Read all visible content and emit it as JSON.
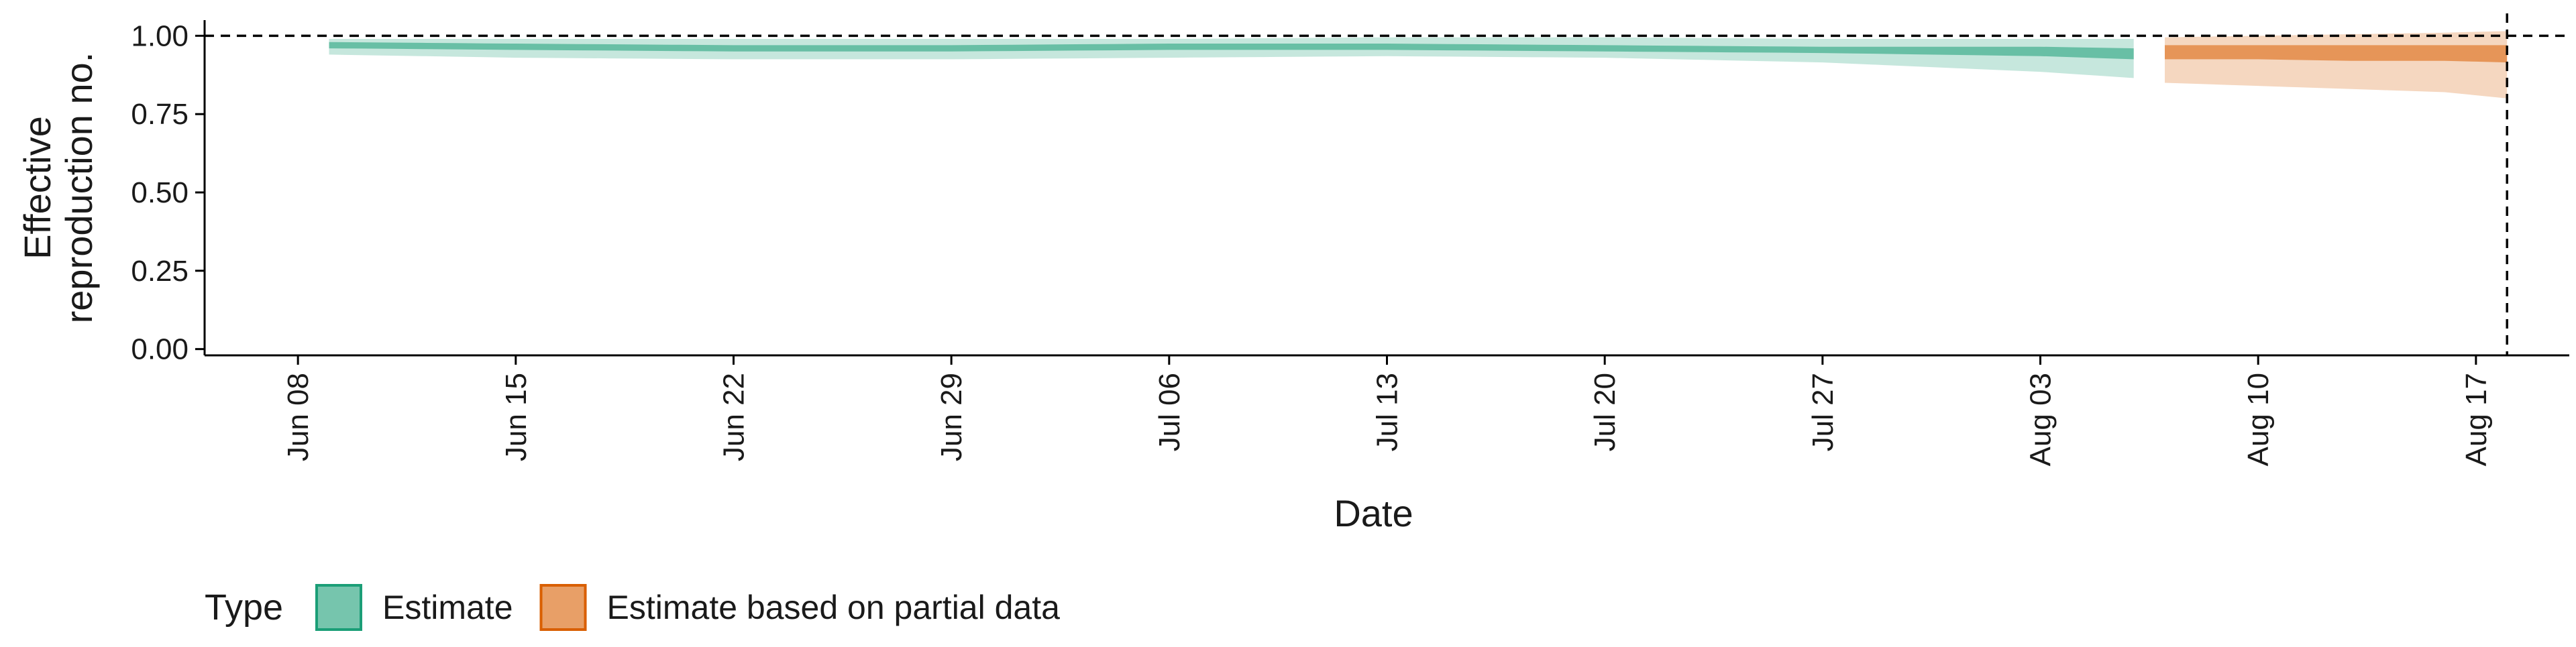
{
  "chart_data": {
    "type": "area",
    "title": "",
    "xlabel": "Date",
    "ylabel_lines": [
      "Effective",
      "reproduction no."
    ],
    "x_type": "date",
    "xlim": [
      "2020-06-05",
      "2020-08-20"
    ],
    "ylim": [
      -0.02,
      1.05
    ],
    "x_ticks": [
      {
        "date": "2020-06-08",
        "label": "Jun 08"
      },
      {
        "date": "2020-06-15",
        "label": "Jun 15"
      },
      {
        "date": "2020-06-22",
        "label": "Jun 22"
      },
      {
        "date": "2020-06-29",
        "label": "Jun 29"
      },
      {
        "date": "2020-07-06",
        "label": "Jul 06"
      },
      {
        "date": "2020-07-13",
        "label": "Jul 13"
      },
      {
        "date": "2020-07-20",
        "label": "Jul 20"
      },
      {
        "date": "2020-07-27",
        "label": "Jul 27"
      },
      {
        "date": "2020-08-03",
        "label": "Aug 03"
      },
      {
        "date": "2020-08-10",
        "label": "Aug 10"
      },
      {
        "date": "2020-08-17",
        "label": "Aug 17"
      }
    ],
    "y_ticks": [
      {
        "value": 0.0,
        "label": "0.00"
      },
      {
        "value": 0.25,
        "label": "0.25"
      },
      {
        "value": 0.5,
        "label": "0.50"
      },
      {
        "value": 0.75,
        "label": "0.75"
      },
      {
        "value": 1.0,
        "label": "1.00"
      }
    ],
    "reference_lines": {
      "y": 1.0,
      "x": "2020-08-18"
    },
    "grid": false,
    "legend": {
      "title": "Type",
      "position": "bottom-left"
    },
    "series": [
      {
        "name": "Estimate",
        "color": "#1b9e77",
        "outer_alpha": 0.25,
        "inner_alpha": 0.55,
        "points": [
          {
            "date": "2020-06-09",
            "lo90": 0.94,
            "lo50": 0.96,
            "hi50": 0.98,
            "hi90": 0.99
          },
          {
            "date": "2020-06-15",
            "lo90": 0.93,
            "lo50": 0.955,
            "hi50": 0.975,
            "hi90": 0.99
          },
          {
            "date": "2020-06-22",
            "lo90": 0.925,
            "lo50": 0.95,
            "hi50": 0.97,
            "hi90": 0.99
          },
          {
            "date": "2020-06-29",
            "lo90": 0.925,
            "lo50": 0.95,
            "hi50": 0.97,
            "hi90": 0.99
          },
          {
            "date": "2020-07-06",
            "lo90": 0.93,
            "lo50": 0.955,
            "hi50": 0.975,
            "hi90": 0.99
          },
          {
            "date": "2020-07-13",
            "lo90": 0.935,
            "lo50": 0.955,
            "hi50": 0.975,
            "hi90": 0.995
          },
          {
            "date": "2020-07-20",
            "lo90": 0.93,
            "lo50": 0.95,
            "hi50": 0.97,
            "hi90": 0.995
          },
          {
            "date": "2020-07-27",
            "lo90": 0.915,
            "lo50": 0.945,
            "hi50": 0.965,
            "hi90": 0.99
          },
          {
            "date": "2020-08-03",
            "lo90": 0.885,
            "lo50": 0.935,
            "hi50": 0.965,
            "hi90": 0.99
          },
          {
            "date": "2020-08-06",
            "lo90": 0.865,
            "lo50": 0.925,
            "hi50": 0.96,
            "hi90": 0.99
          }
        ]
      },
      {
        "name": "Estimate based on partial data",
        "color": "#d95f02",
        "outer_alpha": 0.25,
        "inner_alpha": 0.55,
        "points": [
          {
            "date": "2020-08-07",
            "lo90": 0.85,
            "lo50": 0.925,
            "hi50": 0.97,
            "hi90": 0.995
          },
          {
            "date": "2020-08-10",
            "lo90": 0.84,
            "lo50": 0.925,
            "hi50": 0.97,
            "hi90": 1.0
          },
          {
            "date": "2020-08-13",
            "lo90": 0.83,
            "lo50": 0.92,
            "hi50": 0.97,
            "hi90": 1.005
          },
          {
            "date": "2020-08-16",
            "lo90": 0.82,
            "lo50": 0.92,
            "hi50": 0.97,
            "hi90": 1.01
          },
          {
            "date": "2020-08-18",
            "lo90": 0.8,
            "lo50": 0.915,
            "hi50": 0.97,
            "hi90": 1.015
          }
        ]
      }
    ]
  }
}
